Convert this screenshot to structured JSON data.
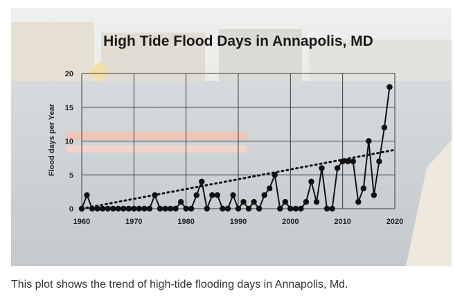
{
  "caption": "This plot shows the trend of high-tide flooding days in Annapolis, Md.",
  "colors": {
    "series": "#111111",
    "grid": "#3a3a3a",
    "trend": "#111111",
    "background_water": "#c9ced2"
  },
  "chart_data": {
    "type": "line",
    "title": "High Tide Flood Days in Annapolis, MD",
    "xlabel": "",
    "ylabel": "Flood days per Year",
    "xlim": [
      1960,
      2020
    ],
    "ylim": [
      0,
      20
    ],
    "xticks": [
      1960,
      1970,
      1980,
      1990,
      2000,
      2010,
      2020
    ],
    "yticks": [
      0,
      5,
      10,
      15,
      20
    ],
    "grid": true,
    "legend": "none",
    "x": [
      1960,
      1961,
      1962,
      1963,
      1964,
      1965,
      1966,
      1967,
      1968,
      1969,
      1970,
      1971,
      1972,
      1973,
      1974,
      1975,
      1976,
      1977,
      1978,
      1979,
      1980,
      1981,
      1982,
      1983,
      1984,
      1985,
      1986,
      1987,
      1988,
      1989,
      1990,
      1991,
      1992,
      1993,
      1994,
      1995,
      1996,
      1997,
      1998,
      1999,
      2000,
      2001,
      2002,
      2003,
      2004,
      2005,
      2006,
      2007,
      2008,
      2009,
      2010,
      2011,
      2012,
      2013,
      2014,
      2015,
      2016,
      2017,
      2018,
      2019
    ],
    "y": [
      0,
      2,
      0,
      0,
      0,
      0,
      0,
      0,
      0,
      0,
      0,
      0,
      0,
      0,
      2,
      0,
      0,
      0,
      0,
      1,
      0,
      0,
      2,
      4,
      0,
      2,
      2,
      0,
      0,
      2,
      0,
      1,
      0,
      1,
      0,
      2,
      3,
      5,
      0,
      1,
      0,
      0,
      0,
      1,
      4,
      1,
      6,
      0,
      0,
      6,
      7,
      7,
      7,
      1,
      3,
      10,
      2,
      7,
      12,
      18
    ],
    "trend": {
      "style": "dotted",
      "from": [
        1960,
        0
      ],
      "to": [
        2020,
        8.7
      ]
    }
  }
}
